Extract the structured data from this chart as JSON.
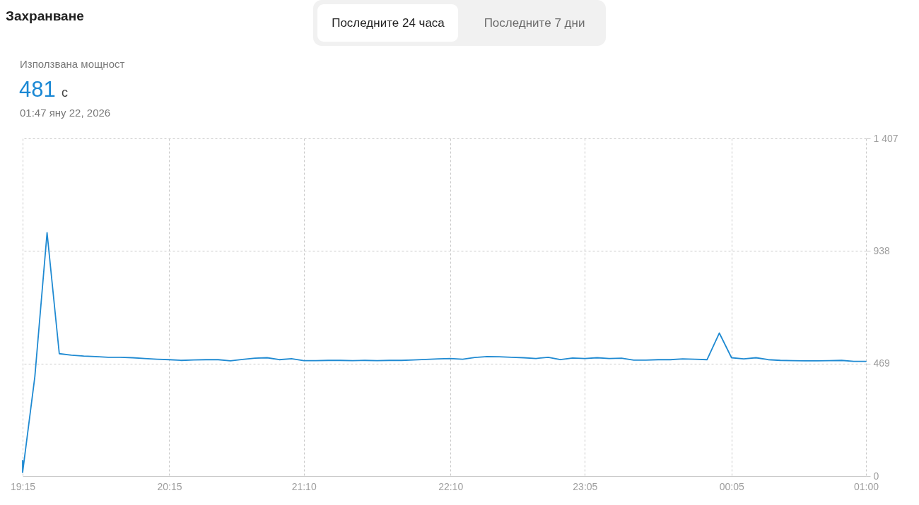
{
  "chart_data": {
    "type": "line",
    "title": "Захранване",
    "annotations": [
      "Последните 24 часа",
      "Последните 7 дни",
      "Използвана мощност",
      "481",
      "с",
      "01:47 яну 22, 2026"
    ],
    "x": [
      "2026-01-21T19:15",
      "2026-01-21T19:15",
      "2026-01-21T19:20",
      "2026-01-21T19:25",
      "2026-01-21T19:30",
      "2026-01-21T19:35",
      "2026-01-21T19:40",
      "2026-01-21T19:45",
      "2026-01-21T19:50",
      "2026-01-21T19:55",
      "2026-01-21T20:00",
      "2026-01-21T20:05",
      "2026-01-21T20:10",
      "2026-01-21T20:15",
      "2026-01-21T20:20",
      "2026-01-21T20:25",
      "2026-01-21T20:30",
      "2026-01-21T20:35",
      "2026-01-21T20:40",
      "2026-01-21T20:45",
      "2026-01-21T20:50",
      "2026-01-21T20:55",
      "2026-01-21T21:00",
      "2026-01-21T21:05",
      "2026-01-21T21:10",
      "2026-01-21T21:15",
      "2026-01-21T21:20",
      "2026-01-21T21:25",
      "2026-01-21T21:30",
      "2026-01-21T21:35",
      "2026-01-21T21:40",
      "2026-01-21T21:45",
      "2026-01-21T21:50",
      "2026-01-21T21:55",
      "2026-01-21T22:00",
      "2026-01-21T22:05",
      "2026-01-21T22:10",
      "2026-01-21T22:15",
      "2026-01-21T22:20",
      "2026-01-21T22:25",
      "2026-01-21T22:30",
      "2026-01-21T22:35",
      "2026-01-21T22:40",
      "2026-01-21T22:45",
      "2026-01-21T22:50",
      "2026-01-21T22:55",
      "2026-01-21T23:00",
      "2026-01-21T23:05",
      "2026-01-21T23:10",
      "2026-01-21T23:15",
      "2026-01-21T23:20",
      "2026-01-21T23:25",
      "2026-01-21T23:30",
      "2026-01-21T23:35",
      "2026-01-21T23:40",
      "2026-01-21T23:45",
      "2026-01-21T23:50",
      "2026-01-21T23:55",
      "2026-01-22T00:00",
      "2026-01-22T00:05",
      "2026-01-22T00:10",
      "2026-01-22T00:15",
      "2026-01-22T00:20",
      "2026-01-22T00:25",
      "2026-01-22T00:30",
      "2026-01-22T00:35",
      "2026-01-22T00:40",
      "2026-01-22T00:45",
      "2026-01-22T00:50",
      "2026-01-22T00:55",
      "2026-01-22T01:00"
    ],
    "series": [
      {
        "color": "#1f8ad2",
        "values": [
          65,
          15,
          414,
          1014,
          510,
          504,
          500,
          498,
          495,
          495,
          493,
          490,
          487,
          485,
          482,
          484,
          485,
          485,
          480,
          486,
          491,
          493,
          485,
          489,
          481,
          481,
          482,
          482,
          481,
          482,
          481,
          482,
          482,
          484,
          486,
          488,
          490,
          487,
          494,
          498,
          497,
          495,
          493,
          490,
          495,
          485,
          492,
          490,
          493,
          490,
          491,
          483,
          483,
          485,
          485,
          488,
          487,
          485,
          596,
          493,
          488,
          493,
          485,
          482,
          481,
          480,
          480,
          481,
          482,
          478,
          478
        ]
      }
    ],
    "xlim": [
      "2026-01-21T19:15",
      "2026-01-22T01:00"
    ],
    "xticks": [
      {
        "value": "2026-01-21T19:15",
        "label": "19:15"
      },
      {
        "value": "2026-01-21T20:15",
        "label": "20:15"
      },
      {
        "value": "2026-01-21T21:10",
        "label": "21:10"
      },
      {
        "value": "2026-01-21T22:10",
        "label": "22:10"
      },
      {
        "value": "2026-01-21T23:05",
        "label": "23:05"
      },
      {
        "value": "2026-01-22T00:05",
        "label": "00:05"
      },
      {
        "value": "2026-01-22T01:00",
        "label": "01:00"
      }
    ],
    "ylim": [
      0,
      1407
    ],
    "yticks": [
      0,
      469,
      938,
      {
        "value": 1407,
        "label": "1 407"
      }
    ],
    "grid": true,
    "line_style": "solid"
  }
}
